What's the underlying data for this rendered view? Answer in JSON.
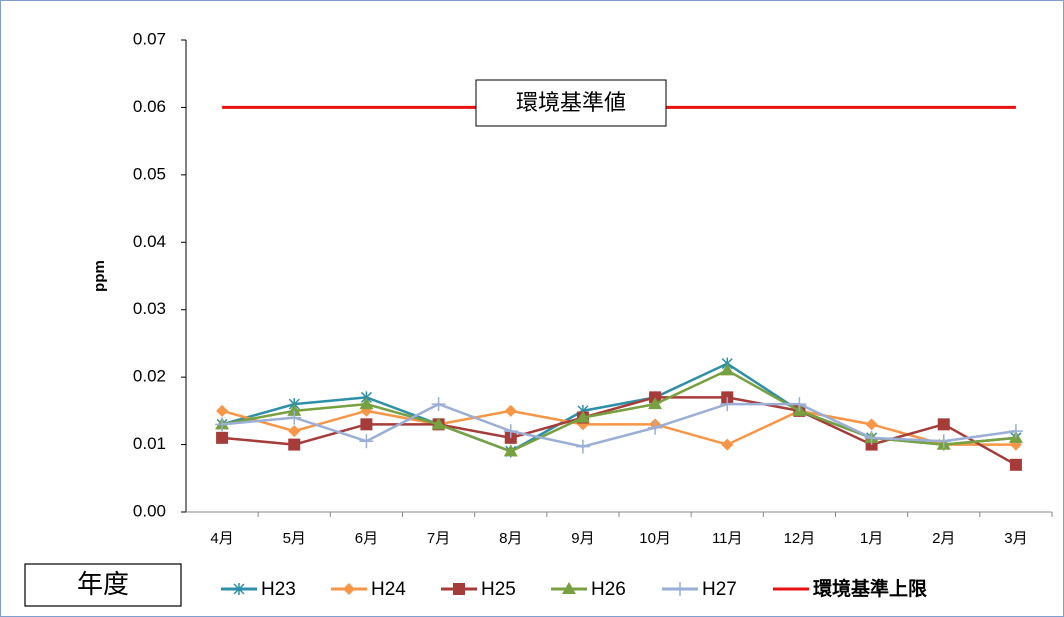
{
  "chart_data": {
    "type": "line",
    "y_label": "ppm",
    "annotation": "環境基準値",
    "legend_title": "年度",
    "categories": [
      "4月",
      "5月",
      "6月",
      "7月",
      "8月",
      "9月",
      "10月",
      "11月",
      "12月",
      "1月",
      "2月",
      "3月"
    ],
    "series": [
      {
        "name": "H23",
        "color": "#2e8fa8",
        "marker": "star",
        "values": [
          0.013,
          0.016,
          0.017,
          0.013,
          0.009,
          0.015,
          0.017,
          0.022,
          0.015,
          0.011,
          0.01,
          0.011
        ]
      },
      {
        "name": "H24",
        "color": "#f79646",
        "marker": "diamond",
        "values": [
          0.015,
          0.012,
          0.015,
          0.013,
          0.015,
          0.013,
          0.013,
          0.01,
          0.015,
          0.013,
          0.01,
          0.01
        ]
      },
      {
        "name": "H25",
        "color": "#a63c3a",
        "marker": "square",
        "values": [
          0.011,
          0.01,
          0.013,
          0.013,
          0.011,
          0.014,
          0.017,
          0.017,
          0.015,
          0.01,
          0.013,
          0.007
        ]
      },
      {
        "name": "H26",
        "color": "#77a040",
        "marker": "triangle",
        "values": [
          0.013,
          0.015,
          0.016,
          0.013,
          0.009,
          0.014,
          0.016,
          0.021,
          0.015,
          0.011,
          0.01,
          0.011
        ]
      },
      {
        "name": "H27",
        "color": "#9aaed6",
        "marker": "plus",
        "values": [
          0.013,
          0.014,
          0.0105,
          0.016,
          0.012,
          0.0097,
          0.0125,
          0.016,
          0.016,
          0.011,
          0.0105,
          0.012
        ]
      },
      {
        "name": "環境基準上限",
        "color": "#e81010",
        "marker": "none",
        "values": [
          0.06,
          0.06,
          0.06,
          0.06,
          0.06,
          0.06,
          0.06,
          0.06,
          0.06,
          0.06,
          0.06,
          0.06
        ]
      }
    ],
    "ylim": [
      0,
      0.07
    ],
    "yticks": [
      {
        "value": 0,
        "label": "0.00"
      },
      0.01,
      0.02,
      0.03,
      0.04,
      0.05,
      0.06,
      0.07
    ],
    "grid": false,
    "legend": "bottom"
  }
}
